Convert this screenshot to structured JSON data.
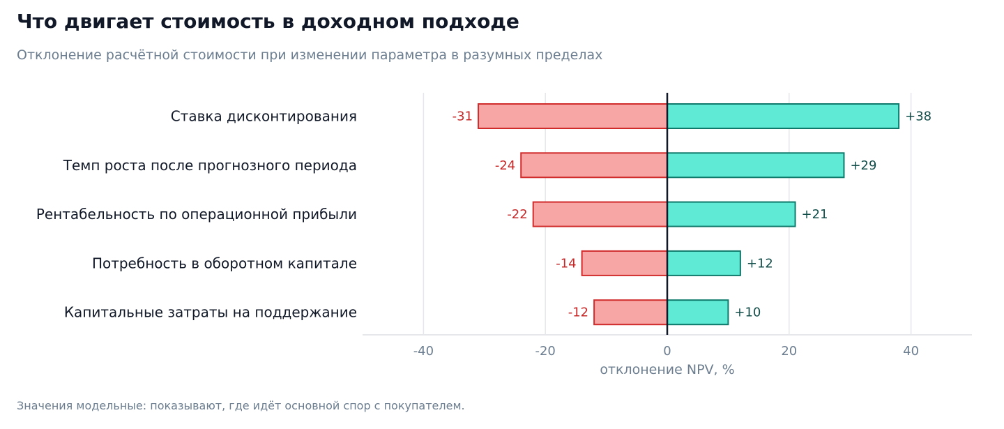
{
  "title": "Что двигает стоимость в доходном подходе",
  "subtitle": "Отклонение расчётной стоимости при изменении параметра в разумных пределах",
  "footnote": "Значения модельные: показывают, где идёт основной спор с покупателем.",
  "colors": {
    "neg_fill": "#f8a5a5",
    "neg_stroke": "#d12c2c",
    "neg_text": "#c62828",
    "pos_fill": "#5eead4",
    "pos_stroke": "#0f7a6c",
    "pos_text": "#134e4a",
    "grid": "#e5e7eb",
    "zero_line": "#111827"
  },
  "chart_data": {
    "type": "bar",
    "orientation": "horizontal",
    "title": "",
    "xlabel": "отклонение NPV, %",
    "ylabel": "",
    "xlim": [
      -50,
      50
    ],
    "xticks": [
      -40,
      -20,
      0,
      20,
      40
    ],
    "xtick_labels": [
      "-40",
      "-20",
      "0",
      "20",
      "40"
    ],
    "grid": true,
    "categories": [
      "Ставка дисконтирования",
      "Темп роста после прогнозного периода",
      "Рентабельность по операционной прибыли",
      "Потребность в оборотном капитале",
      "Капитальные затраты на поддержание"
    ],
    "series": [
      {
        "values": [
          -31,
          -24,
          -22,
          -14,
          -12
        ],
        "labels": [
          "-31",
          "-24",
          "-22",
          "-14",
          "-12"
        ]
      },
      {
        "values": [
          38,
          29,
          21,
          12,
          10
        ],
        "labels": [
          "+38",
          "+29",
          "+21",
          "+12",
          "+10"
        ]
      }
    ]
  }
}
